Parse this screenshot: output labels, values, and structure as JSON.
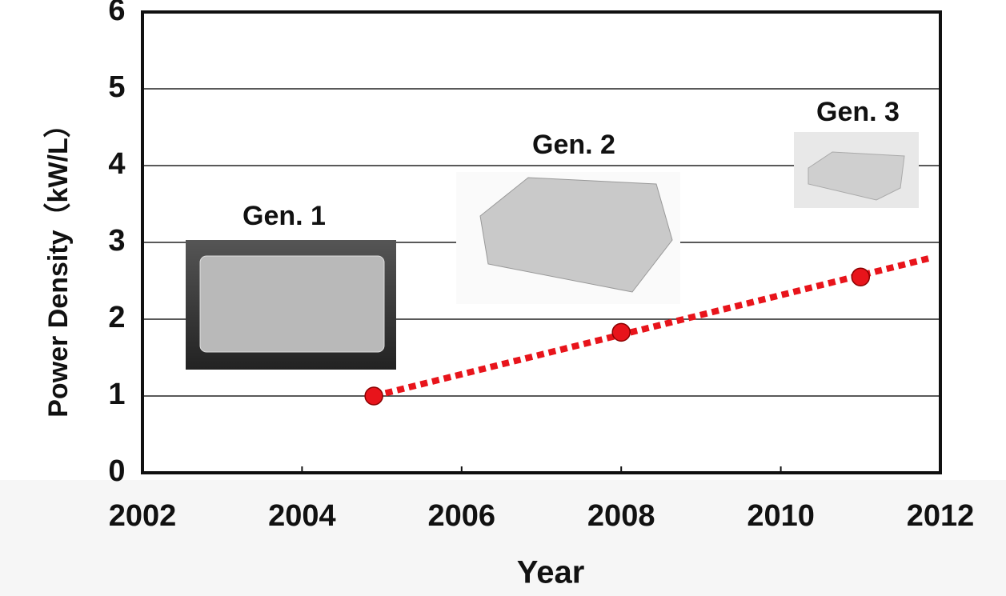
{
  "chart_data": {
    "type": "line",
    "y_label": "Power Density（kW/L）",
    "x_label": "Year",
    "annotations": [
      "Gen. 1",
      "Gen. 2",
      "Gen. 3"
    ],
    "x": [
      2004.9,
      2008,
      2011
    ],
    "values": [
      1.0,
      1.83,
      2.55
    ],
    "trend": {
      "x": [
        2004.9,
        2011.85
      ],
      "values": [
        1.0,
        2.79
      ],
      "color": "#e8141b"
    },
    "color": "#e8141b",
    "xlim": [
      2002,
      2012
    ],
    "xticks": [
      2002,
      2004,
      2006,
      2008,
      2010,
      2012
    ],
    "ylim": [
      0,
      6
    ],
    "yticks": [
      0,
      1,
      2,
      3,
      4,
      5,
      6
    ],
    "grid": true
  }
}
